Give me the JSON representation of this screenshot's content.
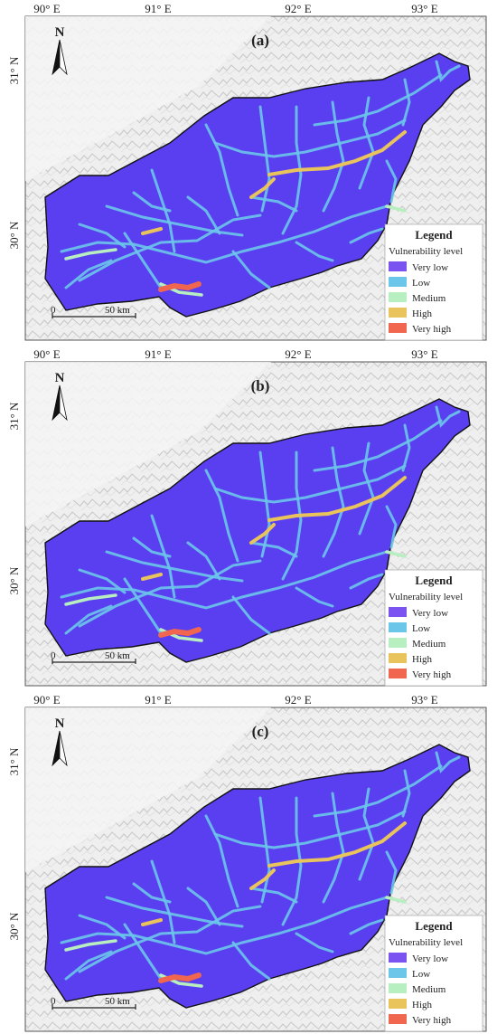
{
  "panels": [
    {
      "id": "a",
      "label": "(a)"
    },
    {
      "id": "b",
      "label": "(b)"
    },
    {
      "id": "c",
      "label": "(c)"
    }
  ],
  "longitude_labels": [
    "90° E",
    "91° E",
    "92° E",
    "93° E"
  ],
  "latitude_labels": [
    "31° N",
    "30° N"
  ],
  "north_arrow": {
    "letter": "N",
    "icon": "north-arrow-icon"
  },
  "scale_bar": {
    "zero": "0",
    "distance": "50 km"
  },
  "legend": {
    "title": "Legend",
    "subtitle": "Vulnerability level",
    "items": [
      {
        "label": "Very low",
        "color": "#7b53f0"
      },
      {
        "label": "Low",
        "color": "#6cc6ea"
      },
      {
        "label": "Medium",
        "color": "#b8efc0"
      },
      {
        "label": "High",
        "color": "#e9c45c"
      },
      {
        "label": "Very high",
        "color": "#f0664e"
      }
    ]
  },
  "colors": {
    "basin_fill": "#5a3ff0",
    "network_low": "#6cc6ea",
    "network_medium": "#b8efc0",
    "network_high": "#e9c45c",
    "network_very_high": "#f0664e",
    "hillshade": "#d8d8d8"
  }
}
